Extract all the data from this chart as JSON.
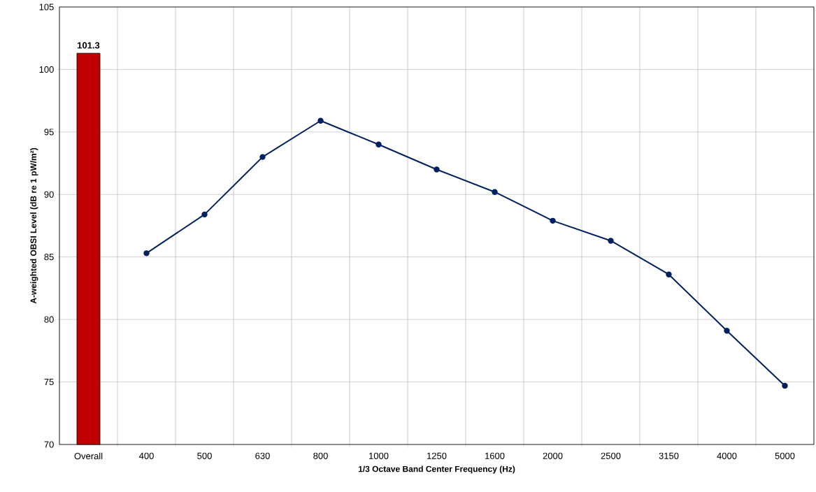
{
  "chart_data": {
    "type": "line",
    "xlabel": "1/3 Octave Band Center Frequency (Hz)",
    "ylabel": "A-weighted OBSI Level (dB re 1 pW/m²)",
    "categories": [
      "Overall",
      "400",
      "500",
      "630",
      "800",
      "1000",
      "1250",
      "1600",
      "2000",
      "2500",
      "3150",
      "4000",
      "5000"
    ],
    "series": [
      {
        "type": "bar",
        "color": "#c00000",
        "values": [
          101.3,
          null,
          null,
          null,
          null,
          null,
          null,
          null,
          null,
          null,
          null,
          null,
          null
        ],
        "value_labels": [
          "101.3",
          null,
          null,
          null,
          null,
          null,
          null,
          null,
          null,
          null,
          null,
          null,
          null
        ]
      },
      {
        "color": "#002060",
        "values": [
          null,
          85.3,
          88.4,
          93.0,
          95.9,
          94.0,
          92.0,
          90.2,
          87.9,
          86.3,
          83.6,
          79.1,
          74.7
        ]
      }
    ],
    "ylim": [
      70,
      105
    ],
    "yticks": [
      70,
      75,
      80,
      85,
      90,
      95,
      100,
      105
    ],
    "grid": true,
    "marker": "circle",
    "line_style": "solid"
  }
}
